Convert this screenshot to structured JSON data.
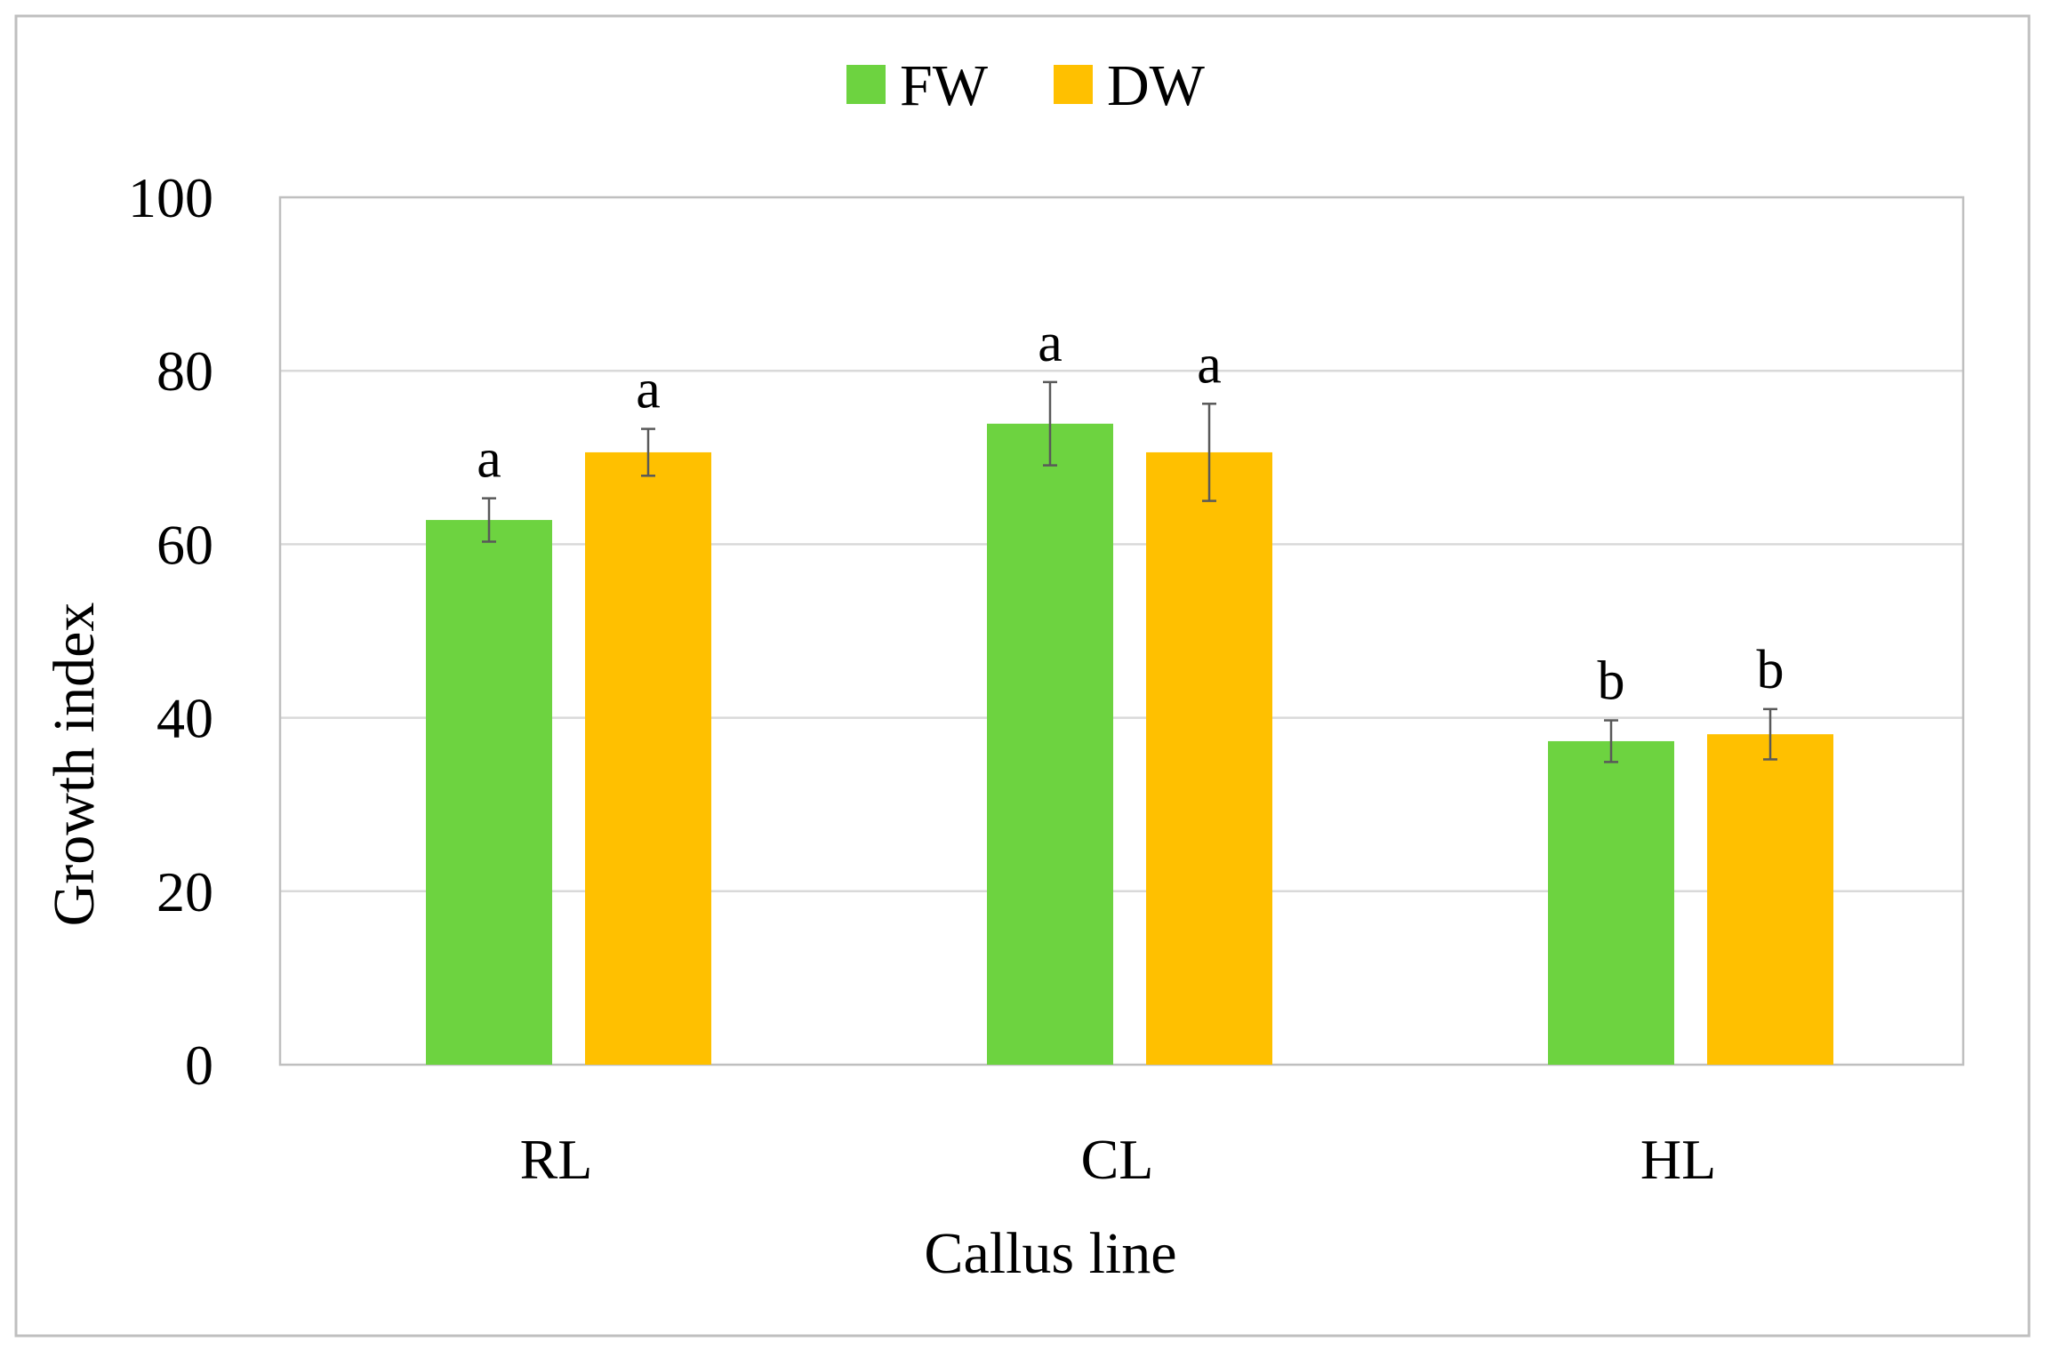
{
  "chart_data": {
    "type": "bar",
    "categories": [
      "RL",
      "CL",
      "HL"
    ],
    "series": [
      {
        "name": "FW",
        "color": "#6dd340",
        "values": [
          62.8,
          73.9,
          37.3
        ],
        "errors": [
          2.5,
          4.8,
          2.4
        ],
        "sig_labels": [
          "a",
          "a",
          "b"
        ]
      },
      {
        "name": "DW",
        "color": "#ffc000",
        "values": [
          70.6,
          70.6,
          38.1
        ],
        "errors": [
          2.7,
          5.6,
          2.9
        ],
        "sig_labels": [
          "a",
          "a",
          "b"
        ]
      }
    ],
    "xlabel": "Callus line",
    "ylabel": "Growth index",
    "ylim": [
      0,
      100
    ],
    "yticks": [
      0,
      20,
      40,
      60,
      80,
      100
    ],
    "grid": true,
    "legend_position": "top-center"
  }
}
